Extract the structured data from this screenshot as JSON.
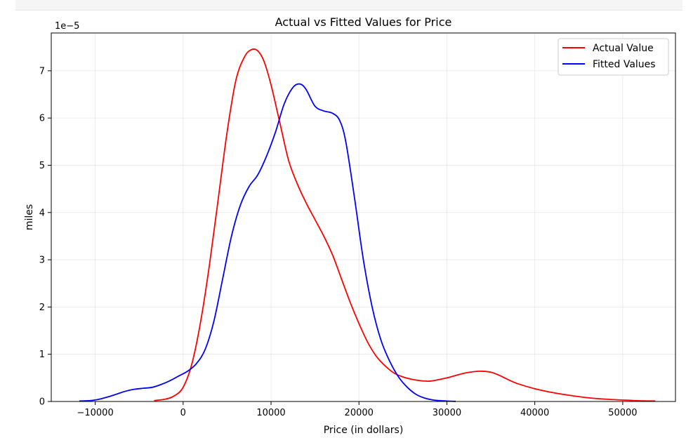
{
  "chart_data": {
    "type": "line",
    "title": "Actual vs Fitted Values for Price",
    "xlabel": "Price (in dollars)",
    "ylabel": "miles",
    "y_offset_label": "1e−5",
    "xlim": [
      -15000,
      56000
    ],
    "ylim": [
      0,
      7.8
    ],
    "x_ticks": [
      -10000,
      0,
      10000,
      20000,
      30000,
      40000,
      50000
    ],
    "x_tick_labels": [
      "−10000",
      "0",
      "10000",
      "20000",
      "30000",
      "40000",
      "50000"
    ],
    "y_ticks": [
      0,
      1,
      2,
      3,
      4,
      5,
      6,
      7
    ],
    "y_tick_labels": [
      "0",
      "1",
      "2",
      "3",
      "4",
      "5",
      "6",
      "7"
    ],
    "grid": true,
    "legend_position": "top-right",
    "series": [
      {
        "name": "Actual Value",
        "color": "#ff0000",
        "x": [
          -3300,
          -2000,
          -1000,
          0,
          1000,
          2000,
          3000,
          4000,
          5000,
          6000,
          7000,
          7800,
          8500,
          9200,
          10000,
          11000,
          12000,
          13000,
          14000,
          15000,
          16000,
          17000,
          18000,
          19000,
          20000,
          21000,
          22000,
          23000,
          24000,
          25000,
          26000,
          27000,
          28000,
          29000,
          30000,
          31000,
          32000,
          33000,
          34000,
          35000,
          36000,
          37000,
          38000,
          40000,
          42000,
          44000,
          46000,
          48000,
          50000,
          52000,
          53700
        ],
        "y": [
          0.02,
          0.05,
          0.12,
          0.3,
          0.8,
          1.7,
          2.9,
          4.3,
          5.7,
          6.8,
          7.3,
          7.45,
          7.42,
          7.2,
          6.7,
          5.9,
          5.1,
          4.6,
          4.2,
          3.85,
          3.5,
          3.1,
          2.6,
          2.1,
          1.65,
          1.25,
          0.95,
          0.75,
          0.6,
          0.52,
          0.47,
          0.44,
          0.43,
          0.46,
          0.5,
          0.55,
          0.6,
          0.63,
          0.64,
          0.62,
          0.55,
          0.46,
          0.38,
          0.27,
          0.19,
          0.13,
          0.08,
          0.05,
          0.03,
          0.015,
          0.01
        ]
      },
      {
        "name": "Fitted Values",
        "color": "#0000ff",
        "x": [
          -11800,
          -10500,
          -9500,
          -8500,
          -7500,
          -6500,
          -5500,
          -4500,
          -3500,
          -2500,
          -1500,
          -500,
          500,
          1500,
          2500,
          3500,
          4500,
          5500,
          6500,
          7500,
          8500,
          9500,
          10500,
          11500,
          12500,
          13300,
          14000,
          15000,
          16000,
          17000,
          17800,
          18500,
          19500,
          20500,
          21500,
          22500,
          23500,
          24500,
          25500,
          26500,
          27500,
          28500,
          29500,
          30500,
          31000
        ],
        "y": [
          0.01,
          0.02,
          0.05,
          0.1,
          0.16,
          0.22,
          0.26,
          0.28,
          0.3,
          0.36,
          0.44,
          0.54,
          0.64,
          0.8,
          1.1,
          1.7,
          2.6,
          3.5,
          4.15,
          4.55,
          4.8,
          5.2,
          5.7,
          6.3,
          6.65,
          6.72,
          6.6,
          6.25,
          6.15,
          6.1,
          5.95,
          5.5,
          4.3,
          3.0,
          2.0,
          1.3,
          0.85,
          0.52,
          0.3,
          0.15,
          0.07,
          0.03,
          0.015,
          0.005,
          0.002
        ]
      }
    ]
  }
}
